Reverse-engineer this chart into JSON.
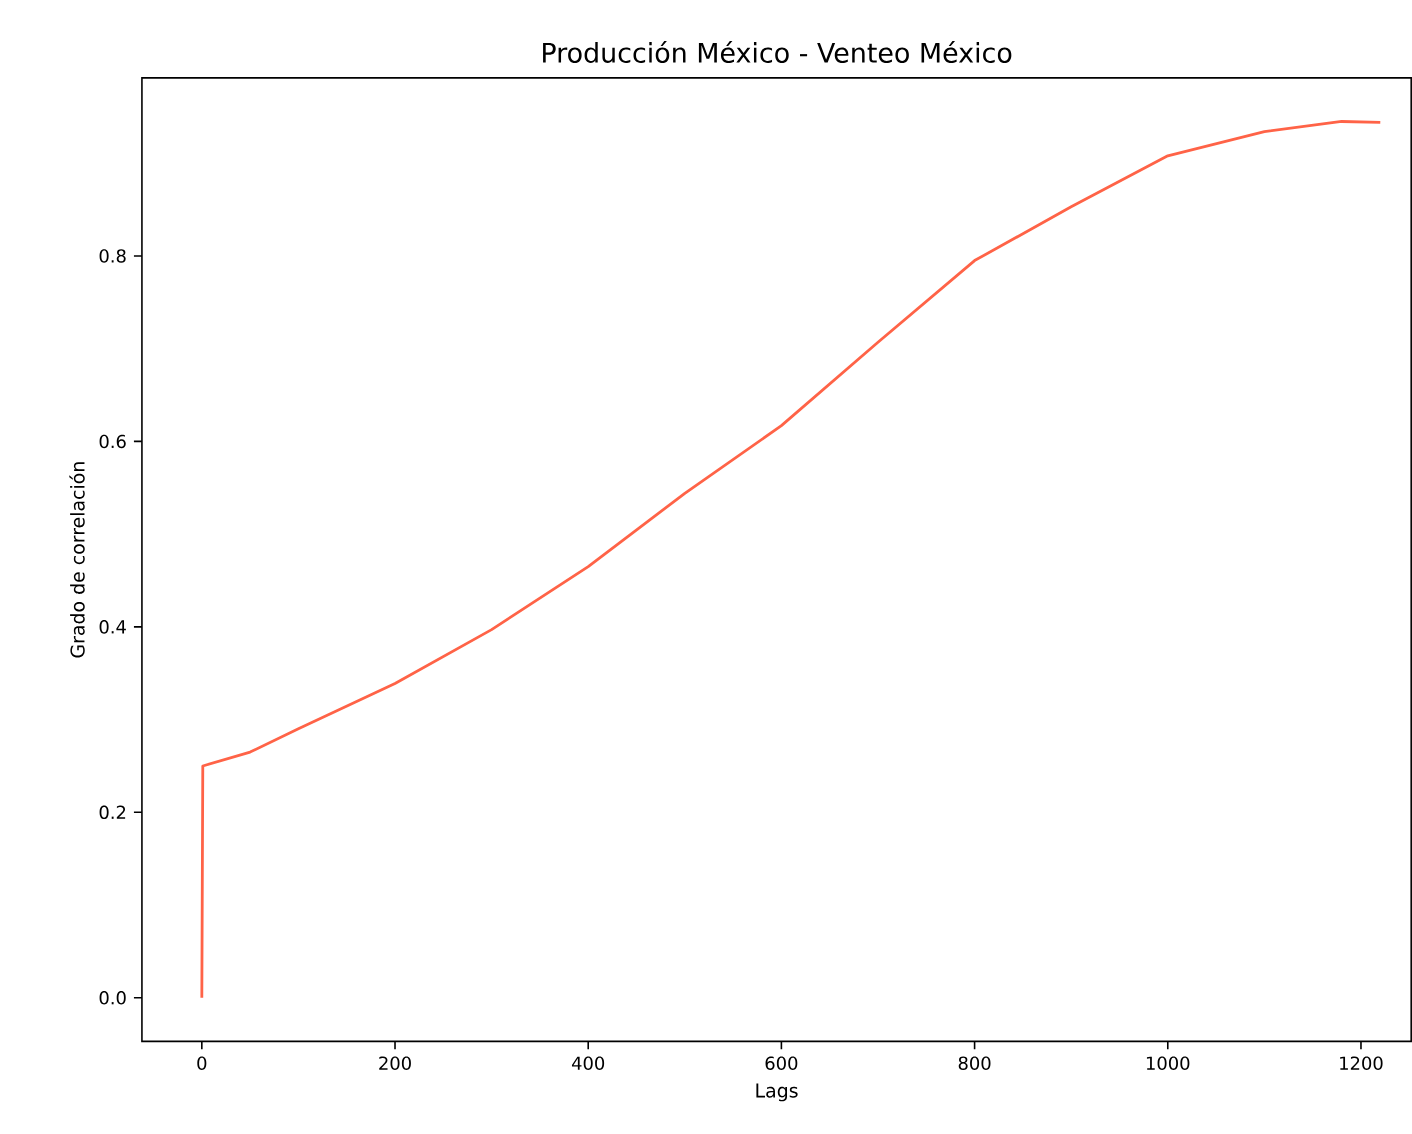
{
  "chart_data": {
    "type": "line",
    "title": "Producción México - Venteo México",
    "xlabel": "Lags",
    "ylabel": "Grado de correlación",
    "x": [
      0,
      1,
      50,
      100,
      200,
      300,
      400,
      500,
      600,
      700,
      800,
      900,
      1000,
      1100,
      1180,
      1220
    ],
    "series": [
      {
        "color": "#ff6347",
        "values": [
          0,
          0.25,
          0.265,
          0.29,
          0.339,
          0.397,
          0.465,
          0.544,
          0.617,
          0.707,
          0.795,
          0.853,
          0.908,
          0.934,
          0.945,
          0.944
        ]
      }
    ],
    "xlim": [
      -62,
      1252
    ],
    "ylim": [
      -0.047,
      0.992
    ],
    "xticks": [
      0,
      200,
      400,
      600,
      800,
      1000,
      1200
    ],
    "yticks": [
      {
        "value": 0,
        "label": "0.0"
      },
      {
        "value": 0.2,
        "label": "0.2"
      },
      {
        "value": 0.4,
        "label": "0.4"
      },
      {
        "value": 0.6,
        "label": "0.6"
      },
      {
        "value": 0.8,
        "label": "0.8"
      }
    ],
    "grid": false,
    "marker": "none",
    "line_style": "solid"
  }
}
